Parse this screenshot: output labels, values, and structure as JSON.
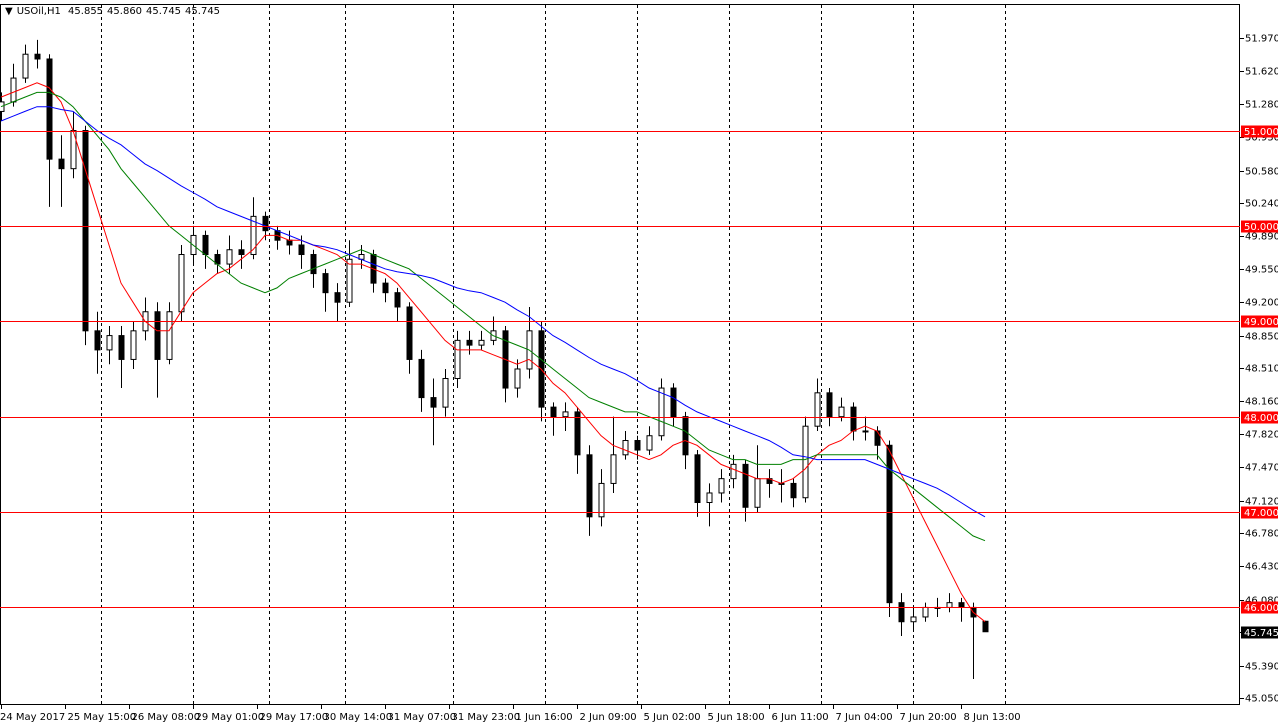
{
  "chart_data": {
    "type": "candlestick",
    "title": "USOil,H1",
    "header_values": [
      "45.855",
      "45.860",
      "45.745",
      "45.745"
    ],
    "xlim": [
      -0.25,
      309.75
    ],
    "ylim": [
      44.977,
      52.316
    ],
    "xticks": [
      {
        "value": 0,
        "label": "24 May 2017"
      },
      {
        "value": 16,
        "label": "25 May 15:00"
      },
      {
        "value": 32,
        "label": "26 May 08:00"
      },
      {
        "value": 48,
        "label": "29 May 01:00"
      },
      {
        "value": 64,
        "label": "29 May 17:00"
      },
      {
        "value": 80,
        "label": "30 May 14:00"
      },
      {
        "value": 96,
        "label": "31 May 07:00"
      },
      {
        "value": 112,
        "label": "31 May 23:00"
      },
      {
        "value": 128,
        "label": "1 Jun 16:00"
      },
      {
        "value": 144,
        "label": "2 Jun 09:00"
      },
      {
        "value": 160,
        "label": "5 Jun 02:00"
      },
      {
        "value": 176,
        "label": "5 Jun 18:00"
      },
      {
        "value": 192,
        "label": "6 Jun 11:00"
      },
      {
        "value": 208,
        "label": "7 Jun 04:00"
      },
      {
        "value": 224,
        "label": "7 Jun 20:00"
      },
      {
        "value": 240,
        "label": "8 Jun 13:00"
      }
    ],
    "yticks": [
      {
        "value": 51.97,
        "label": "51.970"
      },
      {
        "value": 51.62,
        "label": "51.620"
      },
      {
        "value": 51.28,
        "label": "51.280"
      },
      {
        "value": 50.93,
        "label": "50.930"
      },
      {
        "value": 50.58,
        "label": "50.580"
      },
      {
        "value": 50.24,
        "label": "50.240"
      },
      {
        "value": 49.89,
        "label": "49.890"
      },
      {
        "value": 49.55,
        "label": "49.550"
      },
      {
        "value": 49.2,
        "label": "49.200"
      },
      {
        "value": 48.85,
        "label": "48.850"
      },
      {
        "value": 48.51,
        "label": "48.510"
      },
      {
        "value": 48.16,
        "label": "48.160"
      },
      {
        "value": 47.82,
        "label": "47.820"
      },
      {
        "value": 47.47,
        "label": "47.470"
      },
      {
        "value": 47.12,
        "label": "47.120"
      },
      {
        "value": 46.78,
        "label": "46.780"
      },
      {
        "value": 46.43,
        "label": "46.430"
      },
      {
        "value": 46.08,
        "label": "46.080"
      },
      {
        "value": 45.74,
        "label": "45.740"
      },
      {
        "value": 45.39,
        "label": "45.390"
      },
      {
        "value": 45.05,
        "label": "45.050"
      }
    ],
    "separators": [
      25,
      48,
      67,
      86,
      113,
      136,
      159,
      182,
      205,
      228,
      251
    ],
    "levels": [
      {
        "value": 51,
        "label": "51.000"
      },
      {
        "value": 50,
        "label": "50.000"
      },
      {
        "value": 49,
        "label": "49.000"
      },
      {
        "value": 48,
        "label": "48.000"
      },
      {
        "value": 47,
        "label": "47.000"
      },
      {
        "value": 46,
        "label": "46.000"
      }
    ],
    "level_color": "#ff0000",
    "price_label": {
      "value": 45.745,
      "label": "45.745"
    },
    "bull_color": "#ffffff",
    "bear_color": "#000000",
    "line_color": "#000000",
    "x": [
      0,
      3,
      6,
      9,
      12,
      15,
      18,
      21,
      24,
      27,
      30,
      33,
      36,
      39,
      42,
      45,
      48,
      51,
      54,
      57,
      60,
      63,
      66,
      69,
      72,
      75,
      78,
      81,
      84,
      87,
      90,
      93,
      96,
      99,
      102,
      105,
      108,
      111,
      114,
      117,
      120,
      123,
      126,
      129,
      132,
      135,
      138,
      141,
      144,
      147,
      150,
      153,
      156,
      159,
      162,
      165,
      168,
      171,
      174,
      177,
      180,
      183,
      186,
      189,
      192,
      195,
      198,
      201,
      204,
      207,
      210,
      213,
      216,
      219,
      222,
      225,
      228,
      231,
      234,
      237,
      240,
      243,
      246
    ],
    "open": [
      51.2,
      51.3,
      51.55,
      51.8,
      51.75,
      50.7,
      50.6,
      51.0,
      48.9,
      48.7,
      48.85,
      48.6,
      48.9,
      49.1,
      48.6,
      49.1,
      49.7,
      49.9,
      49.7,
      49.6,
      49.75,
      49.7,
      50.1,
      49.95,
      49.85,
      49.8,
      49.7,
      49.5,
      49.3,
      49.2,
      49.65,
      49.7,
      49.4,
      49.3,
      49.15,
      48.6,
      48.2,
      48.1,
      48.4,
      48.8,
      48.75,
      48.8,
      48.9,
      48.3,
      48.5,
      48.9,
      48.1,
      48.0,
      48.05,
      47.6,
      46.95,
      47.3,
      47.6,
      47.75,
      47.65,
      47.8,
      48.3,
      48.0,
      47.6,
      47.1,
      47.2,
      47.35,
      47.5,
      47.05,
      47.35,
      47.3,
      47.3,
      47.15,
      47.9,
      48.25,
      48.0,
      48.1,
      47.85,
      47.85,
      47.7,
      46.05,
      45.85,
      45.9,
      46.0,
      46.0,
      46.05,
      46.0,
      45.855
    ],
    "high": [
      51.4,
      51.7,
      51.9,
      51.95,
      51.8,
      50.95,
      51.2,
      51.05,
      49.1,
      48.95,
      48.95,
      49.0,
      49.25,
      49.2,
      49.2,
      49.8,
      50.0,
      49.95,
      49.75,
      49.9,
      49.85,
      50.3,
      50.15,
      50.0,
      49.95,
      49.9,
      49.75,
      49.55,
      49.4,
      49.85,
      49.8,
      49.75,
      49.45,
      49.35,
      49.2,
      48.7,
      48.4,
      48.5,
      48.9,
      48.9,
      48.9,
      49.05,
      48.95,
      48.6,
      49.15,
      49.0,
      48.15,
      48.15,
      48.1,
      47.7,
      47.45,
      48.0,
      47.85,
      47.8,
      47.9,
      48.4,
      48.35,
      48.05,
      47.65,
      47.3,
      47.45,
      47.6,
      47.55,
      47.7,
      47.45,
      47.45,
      47.35,
      48.0,
      48.4,
      48.3,
      48.2,
      48.15,
      48.0,
      47.9,
      47.75,
      46.15,
      46.0,
      46.05,
      46.1,
      46.15,
      46.1,
      46.05,
      45.86
    ],
    "low": [
      51.1,
      51.25,
      51.5,
      51.65,
      50.2,
      50.2,
      50.5,
      48.75,
      48.45,
      48.55,
      48.3,
      48.5,
      48.8,
      48.2,
      48.55,
      49.0,
      49.6,
      49.55,
      49.5,
      49.5,
      49.55,
      49.65,
      49.85,
      49.75,
      49.7,
      49.55,
      49.35,
      49.1,
      49.0,
      49.15,
      49.55,
      49.3,
      49.2,
      49.0,
      48.45,
      48.05,
      47.7,
      48.0,
      48.3,
      48.65,
      48.7,
      48.75,
      48.15,
      48.2,
      48.4,
      47.95,
      47.8,
      47.85,
      47.4,
      46.75,
      46.85,
      47.2,
      47.55,
      47.55,
      47.6,
      47.75,
      47.9,
      47.45,
      46.95,
      46.85,
      47.1,
      47.25,
      46.9,
      47.0,
      47.15,
      47.1,
      47.05,
      47.1,
      47.85,
      47.9,
      47.95,
      47.75,
      47.75,
      47.55,
      45.9,
      45.7,
      45.75,
      45.85,
      45.9,
      45.95,
      45.85,
      45.25,
      45.745
    ],
    "close": [
      51.3,
      51.55,
      51.8,
      51.75,
      50.7,
      50.6,
      51.0,
      48.9,
      48.7,
      48.85,
      48.6,
      48.9,
      49.1,
      48.6,
      49.1,
      49.7,
      49.9,
      49.7,
      49.6,
      49.75,
      49.7,
      50.1,
      49.95,
      49.85,
      49.8,
      49.7,
      49.5,
      49.3,
      49.2,
      49.65,
      49.7,
      49.4,
      49.3,
      49.15,
      48.6,
      48.2,
      48.1,
      48.4,
      48.8,
      48.75,
      48.8,
      48.9,
      48.3,
      48.5,
      48.9,
      48.1,
      48.0,
      48.05,
      47.6,
      46.95,
      47.3,
      47.6,
      47.75,
      47.65,
      47.8,
      48.3,
      48.0,
      47.6,
      47.1,
      47.2,
      47.35,
      47.5,
      47.05,
      47.35,
      47.3,
      47.3,
      47.15,
      47.9,
      48.25,
      48.0,
      48.1,
      47.85,
      47.85,
      47.7,
      46.05,
      45.85,
      45.9,
      46.0,
      46.0,
      46.05,
      46.0,
      45.9,
      45.745
    ],
    "moving_averages": [
      {
        "color": "#ff0000",
        "values": [
          51.35,
          51.4,
          51.45,
          51.5,
          51.45,
          51.3,
          51.0,
          50.6,
          50.2,
          49.8,
          49.4,
          49.2,
          49.0,
          48.9,
          48.9,
          49.1,
          49.3,
          49.4,
          49.5,
          49.55,
          49.65,
          49.75,
          49.9,
          49.9,
          49.85,
          49.85,
          49.8,
          49.75,
          49.7,
          49.6,
          49.6,
          49.55,
          49.5,
          49.4,
          49.25,
          49.1,
          48.95,
          48.8,
          48.7,
          48.7,
          48.7,
          48.65,
          48.6,
          48.55,
          48.6,
          48.5,
          48.35,
          48.25,
          48.1,
          47.95,
          47.8,
          47.7,
          47.65,
          47.6,
          47.55,
          47.6,
          47.7,
          47.75,
          47.7,
          47.6,
          47.5,
          47.45,
          47.4,
          47.35,
          47.35,
          47.3,
          47.35,
          47.45,
          47.6,
          47.7,
          47.75,
          47.85,
          47.9,
          47.85,
          47.65,
          47.4,
          47.15,
          46.9,
          46.65,
          46.4,
          46.15,
          45.95,
          45.85
        ]
      },
      {
        "color": "#008000",
        "values": [
          51.25,
          51.3,
          51.35,
          51.4,
          51.4,
          51.35,
          51.25,
          51.1,
          50.95,
          50.8,
          50.6,
          50.45,
          50.3,
          50.15,
          50.0,
          49.9,
          49.8,
          49.7,
          49.6,
          49.5,
          49.4,
          49.35,
          49.3,
          49.35,
          49.45,
          49.5,
          49.55,
          49.6,
          49.65,
          49.7,
          49.75,
          49.7,
          49.65,
          49.6,
          49.55,
          49.45,
          49.35,
          49.25,
          49.15,
          49.05,
          48.95,
          48.85,
          48.8,
          48.75,
          48.7,
          48.6,
          48.5,
          48.4,
          48.3,
          48.2,
          48.15,
          48.1,
          48.05,
          48.05,
          48.0,
          47.95,
          47.9,
          47.85,
          47.75,
          47.65,
          47.6,
          47.55,
          47.55,
          47.5,
          47.5,
          47.5,
          47.55,
          47.55,
          47.6,
          47.6,
          47.6,
          47.6,
          47.6,
          47.6,
          47.45,
          47.35,
          47.25,
          47.15,
          47.05,
          46.95,
          46.85,
          46.75,
          46.7
        ]
      },
      {
        "color": "#0000ff",
        "values": [
          51.1,
          51.15,
          51.2,
          51.25,
          51.25,
          51.22,
          51.2,
          51.1,
          51.0,
          50.92,
          50.85,
          50.75,
          50.65,
          50.58,
          50.5,
          50.42,
          50.35,
          50.28,
          50.2,
          50.15,
          50.1,
          50.05,
          50.0,
          49.95,
          49.9,
          49.85,
          49.8,
          49.78,
          49.75,
          49.7,
          49.65,
          49.6,
          49.55,
          49.52,
          49.5,
          49.48,
          49.45,
          49.4,
          49.35,
          49.32,
          49.3,
          49.25,
          49.2,
          49.12,
          49.05,
          48.95,
          48.85,
          48.78,
          48.7,
          48.62,
          48.55,
          48.5,
          48.45,
          48.38,
          48.3,
          48.25,
          48.2,
          48.12,
          48.05,
          48.0,
          47.95,
          47.9,
          47.85,
          47.8,
          47.75,
          47.68,
          47.6,
          47.58,
          47.55,
          47.55,
          47.55,
          47.55,
          47.55,
          47.5,
          47.45,
          47.4,
          47.35,
          47.3,
          47.25,
          47.18,
          47.1,
          47.02,
          46.95
        ]
      }
    ]
  }
}
